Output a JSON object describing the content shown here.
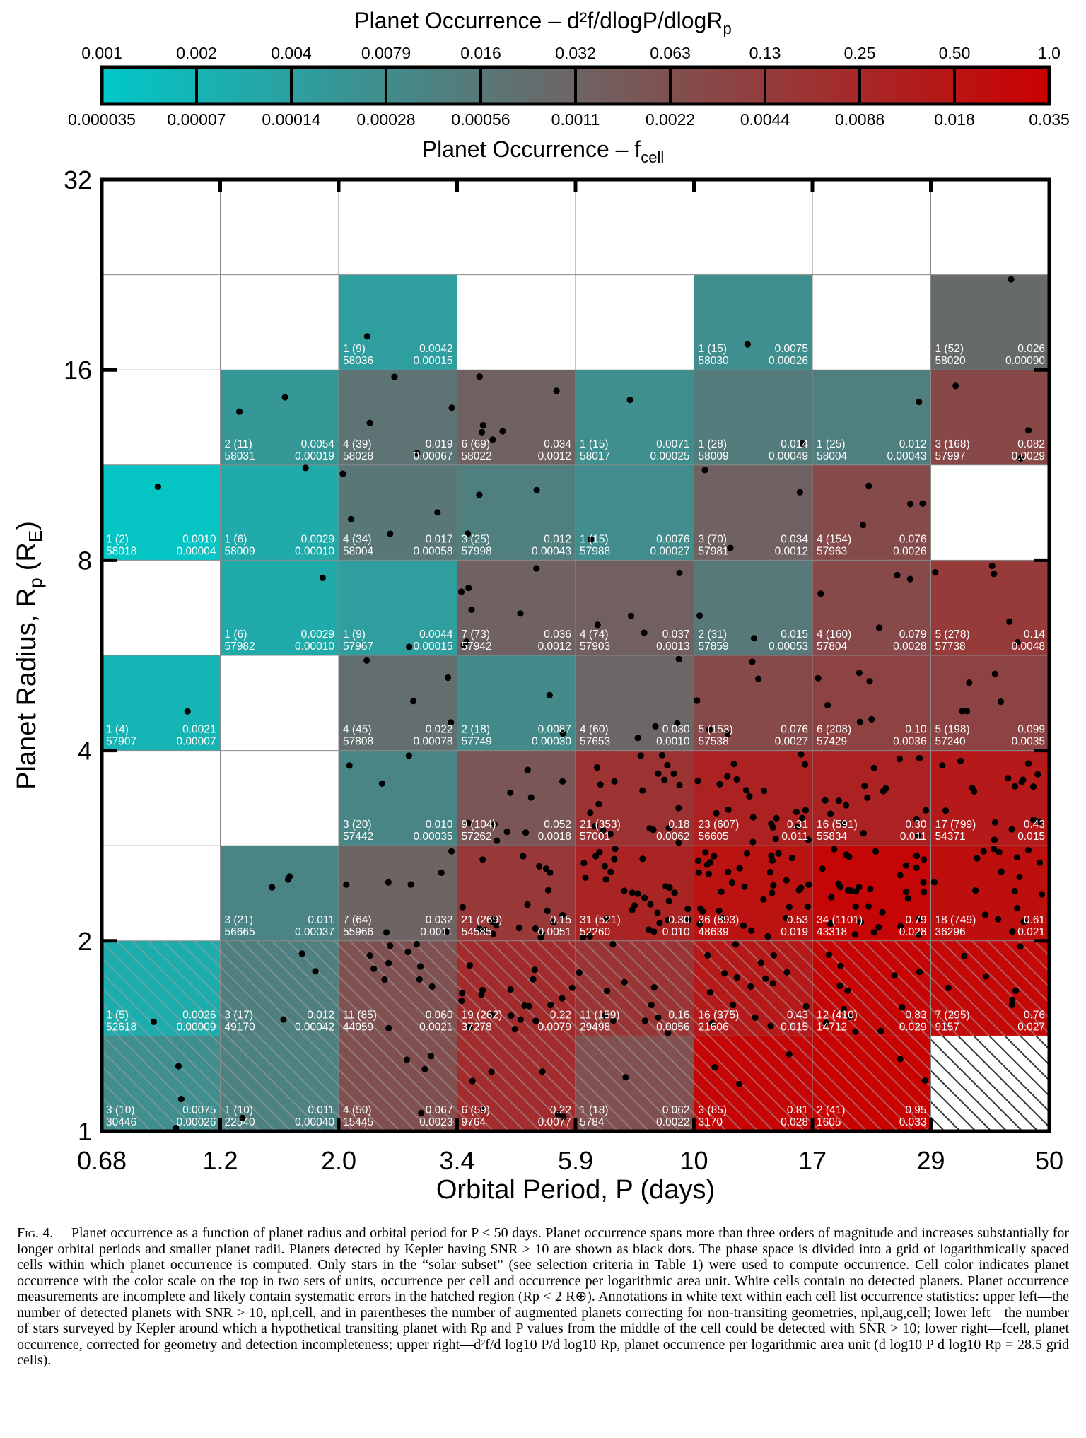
{
  "chart_data": {
    "type": "heatmap",
    "colorbar": {
      "title_top": "Planet Occurrence – d²f/dlogP/dlogR",
      "title_top_sub": "p",
      "title_bottom": "Planet Occurrence – f",
      "title_bottom_sub": "cell",
      "top_ticks": [
        "0.001",
        "0.002",
        "0.004",
        "0.0079",
        "0.016",
        "0.032",
        "0.063",
        "0.13",
        "0.25",
        "0.50",
        "1.0"
      ],
      "bottom_ticks": [
        "0.000035",
        "0.00007",
        "0.00014",
        "0.00028",
        "0.00056",
        "0.0011",
        "0.0022",
        "0.0044",
        "0.0088",
        "0.018",
        "0.035"
      ],
      "colors": [
        "#00c8c8",
        "#cc0000"
      ]
    },
    "xlabel": "Orbital Period, P (days)",
    "ylabel": "Planet Radius, R",
    "ylabel_sub": "p",
    "ylabel_unit": "(R",
    "ylabel_unit_sub": "E",
    "ylabel_unit_close": ")",
    "x_ticks": [
      "0.68",
      "1.2",
      "2.0",
      "3.4",
      "5.9",
      "10",
      "17",
      "29",
      "50"
    ],
    "y_ticks": [
      "1",
      "2",
      "4",
      "8",
      "16",
      "32"
    ],
    "y_rows": [
      "1-1.4",
      "1.4-2",
      "2-2.8",
      "2.8-4",
      "4-5.7",
      "5.7-8",
      "8-11",
      "11-16",
      "16-23",
      "23-32"
    ],
    "cells": [
      {
        "col": 0,
        "row": 0,
        "npl": "3 (10)",
        "nstar": "30446",
        "occ_log": "0.0075",
        "fcell": "0.00026",
        "hatch": true
      },
      {
        "col": 1,
        "row": 0,
        "npl": "1 (10)",
        "nstar": "22540",
        "occ_log": "0.011",
        "fcell": "0.00040",
        "hatch": true
      },
      {
        "col": 2,
        "row": 0,
        "npl": "4 (50)",
        "nstar": "15445",
        "occ_log": "0.067",
        "fcell": "0.0023",
        "hatch": true
      },
      {
        "col": 3,
        "row": 0,
        "npl": "6 (59)",
        "nstar": "9764",
        "occ_log": "0.22",
        "fcell": "0.0077",
        "hatch": true
      },
      {
        "col": 4,
        "row": 0,
        "npl": "1 (18)",
        "nstar": "5784",
        "occ_log": "0.062",
        "fcell": "0.0022",
        "hatch": true
      },
      {
        "col": 5,
        "row": 0,
        "npl": "3 (85)",
        "nstar": "3170",
        "occ_log": "0.81",
        "fcell": "0.028",
        "hatch": true
      },
      {
        "col": 6,
        "row": 0,
        "npl": "2 (41)",
        "nstar": "1605",
        "occ_log": "0.95",
        "fcell": "0.033",
        "hatch": true
      },
      {
        "col": 0,
        "row": 1,
        "npl": "1 (5)",
        "nstar": "52618",
        "occ_log": "0.0026",
        "fcell": "0.00009",
        "hatch": true
      },
      {
        "col": 1,
        "row": 1,
        "npl": "3 (17)",
        "nstar": "49170",
        "occ_log": "0.012",
        "fcell": "0.00042",
        "hatch": true
      },
      {
        "col": 2,
        "row": 1,
        "npl": "11 (85)",
        "nstar": "44059",
        "occ_log": "0.060",
        "fcell": "0.0021",
        "hatch": true
      },
      {
        "col": 3,
        "row": 1,
        "npl": "19 (262)",
        "nstar": "37278",
        "occ_log": "0.22",
        "fcell": "0.0079",
        "hatch": true
      },
      {
        "col": 4,
        "row": 1,
        "npl": "11 (159)",
        "nstar": "29498",
        "occ_log": "0.16",
        "fcell": "0.0056",
        "hatch": true
      },
      {
        "col": 5,
        "row": 1,
        "npl": "16 (375)",
        "nstar": "21606",
        "occ_log": "0.43",
        "fcell": "0.015",
        "hatch": true
      },
      {
        "col": 6,
        "row": 1,
        "npl": "12 (410)",
        "nstar": "14712",
        "occ_log": "0.83",
        "fcell": "0.029",
        "hatch": true
      },
      {
        "col": 7,
        "row": 1,
        "npl": "7 (295)",
        "nstar": "9157",
        "occ_log": "0.76",
        "fcell": "0.027",
        "hatch": true
      },
      {
        "col": 1,
        "row": 2,
        "npl": "3 (21)",
        "nstar": "56665",
        "occ_log": "0.011",
        "fcell": "0.00037"
      },
      {
        "col": 2,
        "row": 2,
        "npl": "7 (64)",
        "nstar": "55966",
        "occ_log": "0.032",
        "fcell": "0.0011"
      },
      {
        "col": 3,
        "row": 2,
        "npl": "21 (269)",
        "nstar": "54585",
        "occ_log": "0.15",
        "fcell": "0.0051"
      },
      {
        "col": 4,
        "row": 2,
        "npl": "31 (521)",
        "nstar": "52260",
        "occ_log": "0.30",
        "fcell": "0.010"
      },
      {
        "col": 5,
        "row": 2,
        "npl": "36 (893)",
        "nstar": "48639",
        "occ_log": "0.53",
        "fcell": "0.019"
      },
      {
        "col": 6,
        "row": 2,
        "npl": "34 (1101)",
        "nstar": "43318",
        "occ_log": "0.79",
        "fcell": "0.028"
      },
      {
        "col": 7,
        "row": 2,
        "npl": "18 (749)",
        "nstar": "36296",
        "occ_log": "0.61",
        "fcell": "0.021"
      },
      {
        "col": 2,
        "row": 3,
        "npl": "3 (20)",
        "nstar": "57442",
        "occ_log": "0.010",
        "fcell": "0.00035"
      },
      {
        "col": 3,
        "row": 3,
        "npl": "9 (104)",
        "nstar": "57262",
        "occ_log": "0.052",
        "fcell": "0.0018"
      },
      {
        "col": 4,
        "row": 3,
        "npl": "21 (353)",
        "nstar": "57001",
        "occ_log": "0.18",
        "fcell": "0.0062"
      },
      {
        "col": 5,
        "row": 3,
        "npl": "23 (607)",
        "nstar": "56605",
        "occ_log": "0.31",
        "fcell": "0.011"
      },
      {
        "col": 6,
        "row": 3,
        "npl": "16 (591)",
        "nstar": "55834",
        "occ_log": "0.30",
        "fcell": "0.011"
      },
      {
        "col": 7,
        "row": 3,
        "npl": "17 (799)",
        "nstar": "54371",
        "occ_log": "0.43",
        "fcell": "0.015"
      },
      {
        "col": 0,
        "row": 4,
        "npl": "1 (4)",
        "nstar": "57907",
        "occ_log": "0.0021",
        "fcell": "0.00007"
      },
      {
        "col": 2,
        "row": 4,
        "npl": "4 (45)",
        "nstar": "57808",
        "occ_log": "0.022",
        "fcell": "0.00078"
      },
      {
        "col": 3,
        "row": 4,
        "npl": "2 (18)",
        "nstar": "57749",
        "occ_log": "0.0087",
        "fcell": "0.00030"
      },
      {
        "col": 4,
        "row": 4,
        "npl": "4 (60)",
        "nstar": "57653",
        "occ_log": "0.030",
        "fcell": "0.0010"
      },
      {
        "col": 5,
        "row": 4,
        "npl": "5 (153)",
        "nstar": "57538",
        "occ_log": "0.076",
        "fcell": "0.0027"
      },
      {
        "col": 6,
        "row": 4,
        "npl": "6 (208)",
        "nstar": "57429",
        "occ_log": "0.10",
        "fcell": "0.0036"
      },
      {
        "col": 7,
        "row": 4,
        "npl": "5 (198)",
        "nstar": "57240",
        "occ_log": "0.099",
        "fcell": "0.0035"
      },
      {
        "col": 1,
        "row": 5,
        "npl": "1 (6)",
        "nstar": "57982",
        "occ_log": "0.0029",
        "fcell": "0.00010"
      },
      {
        "col": 2,
        "row": 5,
        "npl": "1 (9)",
        "nstar": "57967",
        "occ_log": "0.0044",
        "fcell": "0.00015"
      },
      {
        "col": 3,
        "row": 5,
        "npl": "7 (73)",
        "nstar": "57942",
        "occ_log": "0.036",
        "fcell": "0.0012"
      },
      {
        "col": 4,
        "row": 5,
        "npl": "4 (74)",
        "nstar": "57903",
        "occ_log": "0.037",
        "fcell": "0.0013"
      },
      {
        "col": 5,
        "row": 5,
        "npl": "2 (31)",
        "nstar": "57859",
        "occ_log": "0.015",
        "fcell": "0.00053"
      },
      {
        "col": 6,
        "row": 5,
        "npl": "4 (160)",
        "nstar": "57804",
        "occ_log": "0.079",
        "fcell": "0.0028"
      },
      {
        "col": 7,
        "row": 5,
        "npl": "5 (278)",
        "nstar": "57738",
        "occ_log": "0.14",
        "fcell": "0.0048"
      },
      {
        "col": 0,
        "row": 6,
        "npl": "1 (2)",
        "nstar": "58018",
        "occ_log": "0.0010",
        "fcell": "0.00004"
      },
      {
        "col": 1,
        "row": 6,
        "npl": "1 (6)",
        "nstar": "58009",
        "occ_log": "0.0029",
        "fcell": "0.00010"
      },
      {
        "col": 2,
        "row": 6,
        "npl": "4 (34)",
        "nstar": "58004",
        "occ_log": "0.017",
        "fcell": "0.00058"
      },
      {
        "col": 3,
        "row": 6,
        "npl": "3 (25)",
        "nstar": "57998",
        "occ_log": "0.012",
        "fcell": "0.00043"
      },
      {
        "col": 4,
        "row": 6,
        "npl": "1 (15)",
        "nstar": "57988",
        "occ_log": "0.0076",
        "fcell": "0.00027"
      },
      {
        "col": 5,
        "row": 6,
        "npl": "3 (70)",
        "nstar": "57981",
        "occ_log": "0.034",
        "fcell": "0.0012"
      },
      {
        "col": 6,
        "row": 6,
        "npl": "4 (154)",
        "nstar": "57963",
        "occ_log": "0.076",
        "fcell": "0.0026"
      },
      {
        "col": 1,
        "row": 7,
        "npl": "2 (11)",
        "nstar": "58031",
        "occ_log": "0.0054",
        "fcell": "0.00019"
      },
      {
        "col": 2,
        "row": 7,
        "npl": "4 (39)",
        "nstar": "58028",
        "occ_log": "0.019",
        "fcell": "0.00067"
      },
      {
        "col": 3,
        "row": 7,
        "npl": "6 (69)",
        "nstar": "58022",
        "occ_log": "0.034",
        "fcell": "0.0012"
      },
      {
        "col": 4,
        "row": 7,
        "npl": "1 (15)",
        "nstar": "58017",
        "occ_log": "0.0071",
        "fcell": "0.00025"
      },
      {
        "col": 5,
        "row": 7,
        "npl": "1 (28)",
        "nstar": "58009",
        "occ_log": "0.014",
        "fcell": "0.00049"
      },
      {
        "col": 6,
        "row": 7,
        "npl": "1 (25)",
        "nstar": "58004",
        "occ_log": "0.012",
        "fcell": "0.00043"
      },
      {
        "col": 7,
        "row": 7,
        "npl": "3 (168)",
        "nstar": "57997",
        "occ_log": "0.082",
        "fcell": "0.0029"
      },
      {
        "col": 2,
        "row": 8,
        "npl": "1 (9)",
        "nstar": "58036",
        "occ_log": "0.0042",
        "fcell": "0.00015"
      },
      {
        "col": 5,
        "row": 8,
        "npl": "1 (15)",
        "nstar": "58030",
        "occ_log": "0.0075",
        "fcell": "0.00026"
      },
      {
        "col": 7,
        "row": 8,
        "npl": "1 (52)",
        "nstar": "58020",
        "occ_log": "0.026",
        "fcell": "0.00090"
      }
    ],
    "empty_hatched": [
      {
        "col": 7,
        "row": 0
      }
    ]
  },
  "caption": {
    "fig_label": "Fig. 4.—",
    "text": " Planet occurrence as a function of planet radius and orbital period for P < 50 days. Planet occurrence spans more than three orders of magnitude and increases substantially for longer orbital periods and smaller planet radii. Planets detected by Kepler having SNR > 10 are shown as black dots. The phase space is divided into a grid of logarithmically spaced cells within which planet occurrence is computed. Only stars in the “solar subset” (see selection criteria in Table 1) were used to compute occurrence. Cell color indicates planet occurrence with the color scale on the top in two sets of units, occurrence per cell and occurrence per logarithmic area unit. White cells contain no detected planets. Planet occurrence measurements are incomplete and likely contain systematic errors in the hatched region (Rp < 2 R⊕). Annotations in white text within each cell list occurrence statistics: upper left—the number of detected planets with SNR > 10, npl,cell, and in parentheses the number of augmented planets correcting for non-transiting geometries, npl,aug,cell; lower left—the number of stars surveyed by Kepler around which a hypothetical transiting planet with Rp and P values from the middle of the cell could be detected with SNR > 10; lower right—fcell, planet occurrence, corrected for geometry and detection incompleteness; upper right—d²f/d log10 P/d log10 Rp, planet occurrence per logarithmic area unit (d log10 P d log10 Rp = 28.5 grid cells)."
  }
}
